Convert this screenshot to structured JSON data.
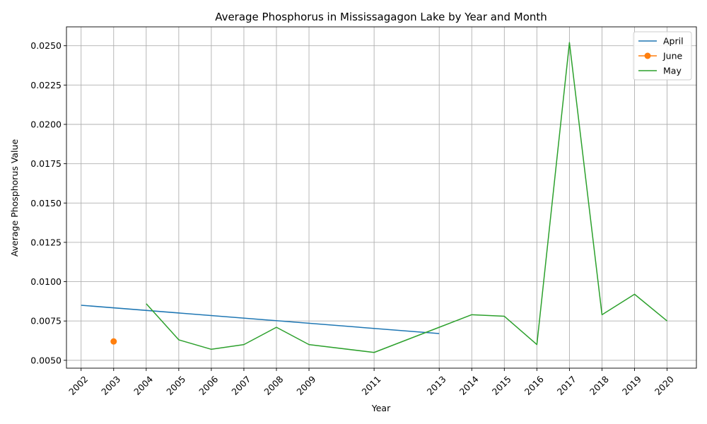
{
  "chart_data": {
    "type": "line",
    "title": "Average Phosphorus in Mississagagon Lake by Year and Month",
    "xlabel": "Year",
    "ylabel": "Average Phosphorus Value",
    "x_ticks": [
      "2002",
      "2003",
      "2004",
      "2005",
      "2006",
      "2007",
      "2008",
      "2009",
      "2011",
      "2013",
      "2014",
      "2015",
      "2016",
      "2017",
      "2018",
      "2019",
      "2020"
    ],
    "y_ticks": [
      "0.0050",
      "0.0075",
      "0.0100",
      "0.0125",
      "0.0150",
      "0.0175",
      "0.0200",
      "0.0225",
      "0.0250"
    ],
    "ylim": [
      0.0045,
      0.0262
    ],
    "grid": true,
    "legend_position": "top-right",
    "series": [
      {
        "name": "April",
        "color": "#1f77b4",
        "marker": "none",
        "points": [
          {
            "x": "2002",
            "y": 0.0085
          },
          {
            "x": "2013",
            "y": 0.0067
          }
        ]
      },
      {
        "name": "June",
        "color": "#ff7f0e",
        "marker": "circle",
        "points": [
          {
            "x": "2003",
            "y": 0.0062
          }
        ]
      },
      {
        "name": "May",
        "color": "#2ca02c",
        "marker": "none",
        "points": [
          {
            "x": "2004",
            "y": 0.0086
          },
          {
            "x": "2005",
            "y": 0.0063
          },
          {
            "x": "2006",
            "y": 0.0057
          },
          {
            "x": "2007",
            "y": 0.006
          },
          {
            "x": "2008",
            "y": 0.0071
          },
          {
            "x": "2009",
            "y": 0.006
          },
          {
            "x": "2011",
            "y": 0.0055
          },
          {
            "x": "2013",
            "y": 0.0071
          },
          {
            "x": "2014",
            "y": 0.0079
          },
          {
            "x": "2015",
            "y": 0.0078
          },
          {
            "x": "2016",
            "y": 0.006
          },
          {
            "x": "2017",
            "y": 0.0252
          },
          {
            "x": "2018",
            "y": 0.0079
          },
          {
            "x": "2019",
            "y": 0.0092
          },
          {
            "x": "2020",
            "y": 0.0075
          }
        ]
      }
    ]
  }
}
